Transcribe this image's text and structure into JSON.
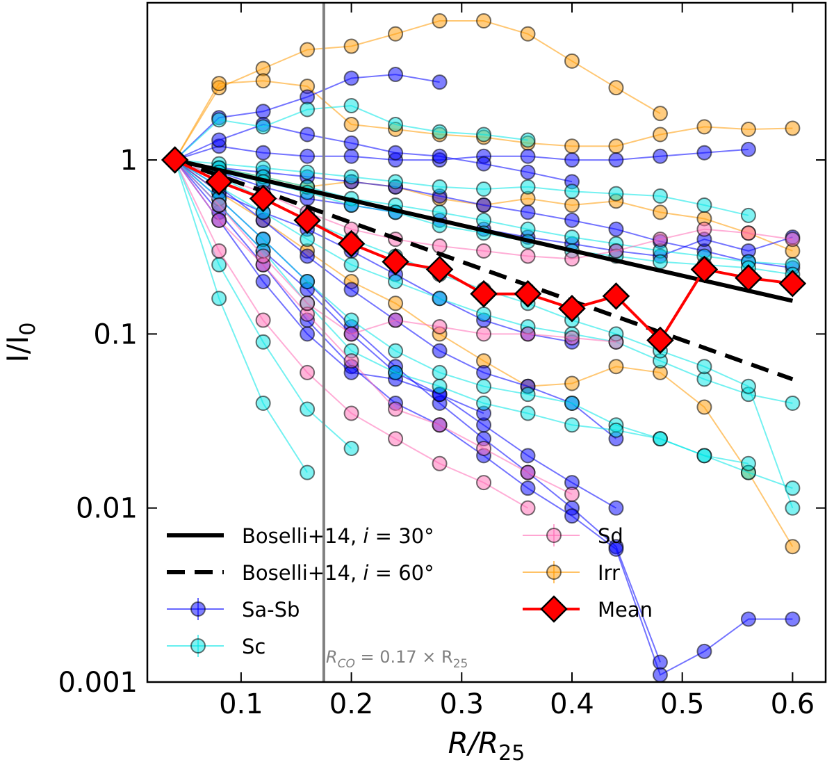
{
  "chart_data": {
    "type": "scatter",
    "xlabel": "R/R",
    "xlabel_sub": "25",
    "ylabel": "I/I",
    "ylabel_sub": "0",
    "xlim": [
      0.015,
      0.63
    ],
    "ylim": [
      0.001,
      8.0
    ],
    "yscale": "log",
    "x_ticks": [
      0.1,
      0.2,
      0.3,
      0.4,
      0.5,
      0.6
    ],
    "x_tick_labels": [
      "0.1",
      "0.2",
      "0.3",
      "0.4",
      "0.5",
      "0.6"
    ],
    "y_ticks": [
      0.001,
      0.01,
      0.1,
      1
    ],
    "y_tick_labels": [
      "0.001",
      "0.01",
      "0.1",
      "1"
    ],
    "vline": {
      "x": 0.175,
      "label": "R",
      "label_sub": "CO",
      "label_rest": " = 0.17 × R",
      "label_sub2": "25",
      "color": "#808080"
    },
    "colors": {
      "sa_sb": "#0000ff",
      "sc": "#00e5e5",
      "sd": "#ff69b4",
      "irr": "#ff9900",
      "mean": "#ff0000",
      "boselli": "#000000"
    },
    "legend": {
      "placement": "lower-left",
      "entries": [
        {
          "key": "b30",
          "label": "Boselli+14, ",
          "math": "i",
          "rest": " = 30°"
        },
        {
          "key": "b60",
          "label": "Boselli+14, ",
          "math": "i",
          "rest": " = 60°"
        },
        {
          "key": "sa_sb",
          "label": "Sa-Sb"
        },
        {
          "key": "sc",
          "label": "Sc"
        },
        {
          "key": "sd",
          "label": "Sd"
        },
        {
          "key": "irr",
          "label": "Irr"
        },
        {
          "key": "mean",
          "label": "Mean"
        }
      ]
    },
    "lines": [
      {
        "name": "Boselli+14, i = 30°",
        "style": "solid",
        "x": [
          0.04,
          0.6
        ],
        "y": [
          1.0,
          0.155
        ]
      },
      {
        "name": "Boselli+14, i = 60°",
        "style": "dashed",
        "x": [
          0.04,
          0.6
        ],
        "y": [
          1.0,
          0.055
        ]
      }
    ],
    "mean": {
      "name": "Mean",
      "x": [
        0.04,
        0.08,
        0.12,
        0.16,
        0.2,
        0.24,
        0.28,
        0.32,
        0.36,
        0.4,
        0.44,
        0.48,
        0.52,
        0.56,
        0.6
      ],
      "y": [
        1.0,
        0.75,
        0.6,
        0.45,
        0.33,
        0.26,
        0.235,
        0.17,
        0.17,
        0.14,
        0.165,
        0.092,
        0.235,
        0.21,
        0.195
      ]
    },
    "series": [
      {
        "group": "irr",
        "x": [
          0.04,
          0.08,
          0.12,
          0.16,
          0.2,
          0.24,
          0.28,
          0.32,
          0.36,
          0.4,
          0.44,
          0.48
        ],
        "y": [
          1.0,
          2.6,
          3.35,
          4.3,
          4.5,
          5.3,
          6.3,
          6.3,
          5.3,
          3.7,
          2.6,
          1.85
        ]
      },
      {
        "group": "irr",
        "x": [
          0.04,
          0.08,
          0.12,
          0.16,
          0.2,
          0.24,
          0.28,
          0.32,
          0.36,
          0.4,
          0.44,
          0.48,
          0.52,
          0.56,
          0.6
        ],
        "y": [
          1.0,
          2.75,
          2.85,
          2.65,
          1.6,
          1.5,
          1.4,
          1.35,
          1.25,
          1.2,
          1.2,
          1.4,
          1.55,
          1.5,
          1.52
        ]
      },
      {
        "group": "irr",
        "x": [
          0.04,
          0.08,
          0.12,
          0.16,
          0.2,
          0.24,
          0.28,
          0.32,
          0.36,
          0.4,
          0.44,
          0.48,
          0.52,
          0.56,
          0.6
        ],
        "y": [
          1.0,
          0.9,
          0.8,
          0.7,
          0.75,
          0.7,
          0.6,
          0.55,
          0.6,
          0.55,
          0.58,
          0.5,
          0.46,
          0.38,
          0.3
        ]
      },
      {
        "group": "irr",
        "x": [
          0.04,
          0.08,
          0.12,
          0.16,
          0.2,
          0.24,
          0.28,
          0.32,
          0.36,
          0.4,
          0.44,
          0.48,
          0.52,
          0.56,
          0.6
        ],
        "y": [
          1.0,
          0.65,
          0.45,
          0.3,
          0.2,
          0.15,
          0.1,
          0.07,
          0.05,
          0.052,
          0.065,
          0.06,
          0.038,
          0.016,
          0.006
        ]
      },
      {
        "group": "sa_sb",
        "x": [
          0.04,
          0.08,
          0.12,
          0.16,
          0.2,
          0.24,
          0.28
        ],
        "y": [
          1.0,
          1.75,
          1.9,
          2.3,
          2.95,
          3.1,
          2.8
        ]
      },
      {
        "group": "sa_sb",
        "x": [
          0.04,
          0.08,
          0.12,
          0.16,
          0.2,
          0.24,
          0.28,
          0.32,
          0.36,
          0.4,
          0.44,
          0.48,
          0.52,
          0.56
        ],
        "y": [
          1.0,
          1.2,
          1.1,
          1.05,
          1.05,
          1.0,
          1.0,
          1.05,
          1.05,
          1.0,
          1.0,
          1.05,
          1.1,
          1.15
        ]
      },
      {
        "group": "sa_sb",
        "x": [
          0.04,
          0.08,
          0.12,
          0.16,
          0.2,
          0.24,
          0.28,
          0.32,
          0.36,
          0.4,
          0.44,
          0.48,
          0.52,
          0.56,
          0.6
        ],
        "y": [
          1.0,
          0.9,
          0.85,
          0.8,
          0.75,
          0.7,
          0.62,
          0.55,
          0.5,
          0.45,
          0.4,
          0.34,
          0.3,
          0.26,
          0.24
        ]
      },
      {
        "group": "sa_sb",
        "x": [
          0.04,
          0.08,
          0.12,
          0.16,
          0.2,
          0.24,
          0.28,
          0.32,
          0.36,
          0.4,
          0.44,
          0.48
        ],
        "y": [
          1.0,
          0.6,
          0.35,
          0.2,
          0.11,
          0.065,
          0.04,
          0.025,
          0.016,
          0.01,
          0.006,
          0.0013
        ]
      },
      {
        "group": "sa_sb",
        "x": [
          0.04,
          0.08,
          0.12,
          0.16,
          0.2,
          0.24,
          0.28,
          0.32,
          0.36,
          0.4,
          0.44,
          0.48,
          0.52,
          0.56,
          0.6
        ],
        "y": [
          1.0,
          0.5,
          0.25,
          0.12,
          0.065,
          0.04,
          0.03,
          0.02,
          0.013,
          0.009,
          0.0058,
          0.0011,
          0.0015,
          0.0023,
          0.0023
        ]
      },
      {
        "group": "sa_sb",
        "x": [
          0.04,
          0.08,
          0.12,
          0.16,
          0.2,
          0.24,
          0.28,
          0.32,
          0.36,
          0.4,
          0.44
        ],
        "y": [
          1.0,
          0.55,
          0.3,
          0.18,
          0.1,
          0.06,
          0.045,
          0.03,
          0.02,
          0.014,
          0.01
        ]
      },
      {
        "group": "sa_sb",
        "x": [
          0.04,
          0.08,
          0.12,
          0.16,
          0.2,
          0.24,
          0.28,
          0.32,
          0.36,
          0.4,
          0.44,
          0.48,
          0.52,
          0.56,
          0.6
        ],
        "y": [
          1.0,
          0.85,
          0.7,
          0.6,
          0.55,
          0.5,
          0.45,
          0.4,
          0.36,
          0.33,
          0.3,
          0.28,
          0.35,
          0.3,
          0.36
        ]
      },
      {
        "group": "sa_sb",
        "x": [
          0.04,
          0.08,
          0.12,
          0.16,
          0.2,
          0.24,
          0.28,
          0.32,
          0.36,
          0.4,
          0.44
        ],
        "y": [
          1.0,
          0.7,
          0.45,
          0.28,
          0.18,
          0.12,
          0.08,
          0.06,
          0.05,
          0.04,
          0.025
        ]
      },
      {
        "group": "sa_sb",
        "x": [
          0.04,
          0.08,
          0.12,
          0.16,
          0.2,
          0.24,
          0.28,
          0.32,
          0.36,
          0.4
        ],
        "y": [
          1.0,
          1.3,
          1.6,
          1.4,
          1.25,
          1.1,
          1.05,
          0.95,
          0.85,
          0.75
        ]
      },
      {
        "group": "sa_sb",
        "x": [
          0.04,
          0.08,
          0.12,
          0.16,
          0.2,
          0.24,
          0.28,
          0.32
        ],
        "y": [
          1.0,
          0.45,
          0.2,
          0.1,
          0.06,
          0.055,
          0.045,
          0.035
        ]
      },
      {
        "group": "sa_sb",
        "x": [
          0.04,
          0.08,
          0.12,
          0.16,
          0.2,
          0.24,
          0.28,
          0.32,
          0.36,
          0.4
        ],
        "y": [
          1.0,
          0.65,
          0.5,
          0.4,
          0.3,
          0.22,
          0.16,
          0.12,
          0.1,
          0.09
        ]
      },
      {
        "group": "sc",
        "x": [
          0.04,
          0.08,
          0.12,
          0.16,
          0.2,
          0.24,
          0.28,
          0.32,
          0.36
        ],
        "y": [
          1.0,
          1.7,
          1.55,
          1.95,
          2.05,
          1.6,
          1.45,
          1.4,
          1.3
        ]
      },
      {
        "group": "sc",
        "x": [
          0.04,
          0.08,
          0.12,
          0.16,
          0.2,
          0.24,
          0.28,
          0.32,
          0.36,
          0.4,
          0.44,
          0.48,
          0.52,
          0.56
        ],
        "y": [
          1.0,
          0.95,
          0.9,
          0.85,
          0.8,
          0.75,
          0.7,
          0.68,
          0.7,
          0.66,
          0.64,
          0.62,
          0.55,
          0.48
        ]
      },
      {
        "group": "sc",
        "x": [
          0.04,
          0.08,
          0.12,
          0.16,
          0.2,
          0.24,
          0.28,
          0.32,
          0.36,
          0.4,
          0.44,
          0.48,
          0.52,
          0.56,
          0.6
        ],
        "y": [
          1.0,
          0.9,
          0.8,
          0.7,
          0.6,
          0.55,
          0.5,
          0.45,
          0.4,
          0.36,
          0.33,
          0.3,
          0.28,
          0.26,
          0.25
        ]
      },
      {
        "group": "sc",
        "x": [
          0.04,
          0.08,
          0.12,
          0.16,
          0.2,
          0.24,
          0.28,
          0.32,
          0.36,
          0.4,
          0.44,
          0.48,
          0.52,
          0.56,
          0.6
        ],
        "y": [
          1.0,
          0.7,
          0.5,
          0.35,
          0.25,
          0.2,
          0.16,
          0.13,
          0.11,
          0.1,
          0.09,
          0.07,
          0.055,
          0.045,
          0.04
        ]
      },
      {
        "group": "sc",
        "x": [
          0.04,
          0.08,
          0.12,
          0.16,
          0.2,
          0.24,
          0.28,
          0.32,
          0.36,
          0.4,
          0.44,
          0.48,
          0.52,
          0.56,
          0.6
        ],
        "y": [
          1.0,
          0.6,
          0.35,
          0.2,
          0.12,
          0.08,
          0.06,
          0.05,
          0.045,
          0.04,
          0.03,
          0.025,
          0.02,
          0.016,
          0.013
        ]
      },
      {
        "group": "sc",
        "x": [
          0.04,
          0.08,
          0.12,
          0.16
        ],
        "y": [
          1.0,
          0.16,
          0.04,
          0.016
        ]
      },
      {
        "group": "sc",
        "x": [
          0.04,
          0.08,
          0.12,
          0.16,
          0.2
        ],
        "y": [
          1.0,
          0.25,
          0.09,
          0.037,
          0.022
        ]
      },
      {
        "group": "sc",
        "x": [
          0.04,
          0.08,
          0.12,
          0.16,
          0.2,
          0.24,
          0.28,
          0.32,
          0.36,
          0.4,
          0.44,
          0.48,
          0.52,
          0.56,
          0.6
        ],
        "y": [
          1.0,
          0.85,
          0.75,
          0.65,
          0.55,
          0.5,
          0.42,
          0.38,
          0.34,
          0.3,
          0.28,
          0.26,
          0.25,
          0.24,
          0.22
        ]
      },
      {
        "group": "sc",
        "x": [
          0.04,
          0.08,
          0.12,
          0.16,
          0.2,
          0.24,
          0.28,
          0.32,
          0.36,
          0.4,
          0.44,
          0.48,
          0.52,
          0.56
        ],
        "y": [
          1.0,
          0.55,
          0.3,
          0.15,
          0.08,
          0.06,
          0.05,
          0.04,
          0.035,
          0.03,
          0.028,
          0.025,
          0.02,
          0.018
        ]
      },
      {
        "group": "sc",
        "x": [
          0.04,
          0.08,
          0.12,
          0.16,
          0.2,
          0.24,
          0.28,
          0.32,
          0.36,
          0.4,
          0.44,
          0.48,
          0.52,
          0.56,
          0.6
        ],
        "y": [
          1.0,
          0.8,
          0.6,
          0.45,
          0.35,
          0.28,
          0.22,
          0.18,
          0.15,
          0.12,
          0.1,
          0.08,
          0.065,
          0.05,
          0.01
        ]
      },
      {
        "group": "sd",
        "x": [
          0.04,
          0.08,
          0.12,
          0.16,
          0.2,
          0.24,
          0.28,
          0.32,
          0.36
        ],
        "y": [
          1.0,
          0.3,
          0.12,
          0.06,
          0.035,
          0.025,
          0.018,
          0.014,
          0.01
        ]
      },
      {
        "group": "sd",
        "x": [
          0.04,
          0.08,
          0.12,
          0.16,
          0.2,
          0.24,
          0.28,
          0.32,
          0.36,
          0.4
        ],
        "y": [
          1.0,
          0.45,
          0.25,
          0.13,
          0.07,
          0.037,
          0.03,
          0.022,
          0.016,
          0.012
        ]
      },
      {
        "group": "sd",
        "x": [
          0.04,
          0.08,
          0.12,
          0.16,
          0.2,
          0.24,
          0.28,
          0.32,
          0.36,
          0.4,
          0.44,
          0.48,
          0.52,
          0.56,
          0.6
        ],
        "y": [
          1.0,
          0.8,
          0.65,
          0.5,
          0.4,
          0.35,
          0.32,
          0.3,
          0.28,
          0.27,
          0.3,
          0.35,
          0.4,
          0.38,
          0.35
        ]
      },
      {
        "group": "sd",
        "x": [
          0.04,
          0.08,
          0.12,
          0.16,
          0.2,
          0.24,
          0.28,
          0.32,
          0.36,
          0.4,
          0.44
        ],
        "y": [
          1.0,
          0.55,
          0.28,
          0.15,
          0.1,
          0.12,
          0.11,
          0.1,
          0.1,
          0.095,
          0.09
        ]
      }
    ]
  }
}
